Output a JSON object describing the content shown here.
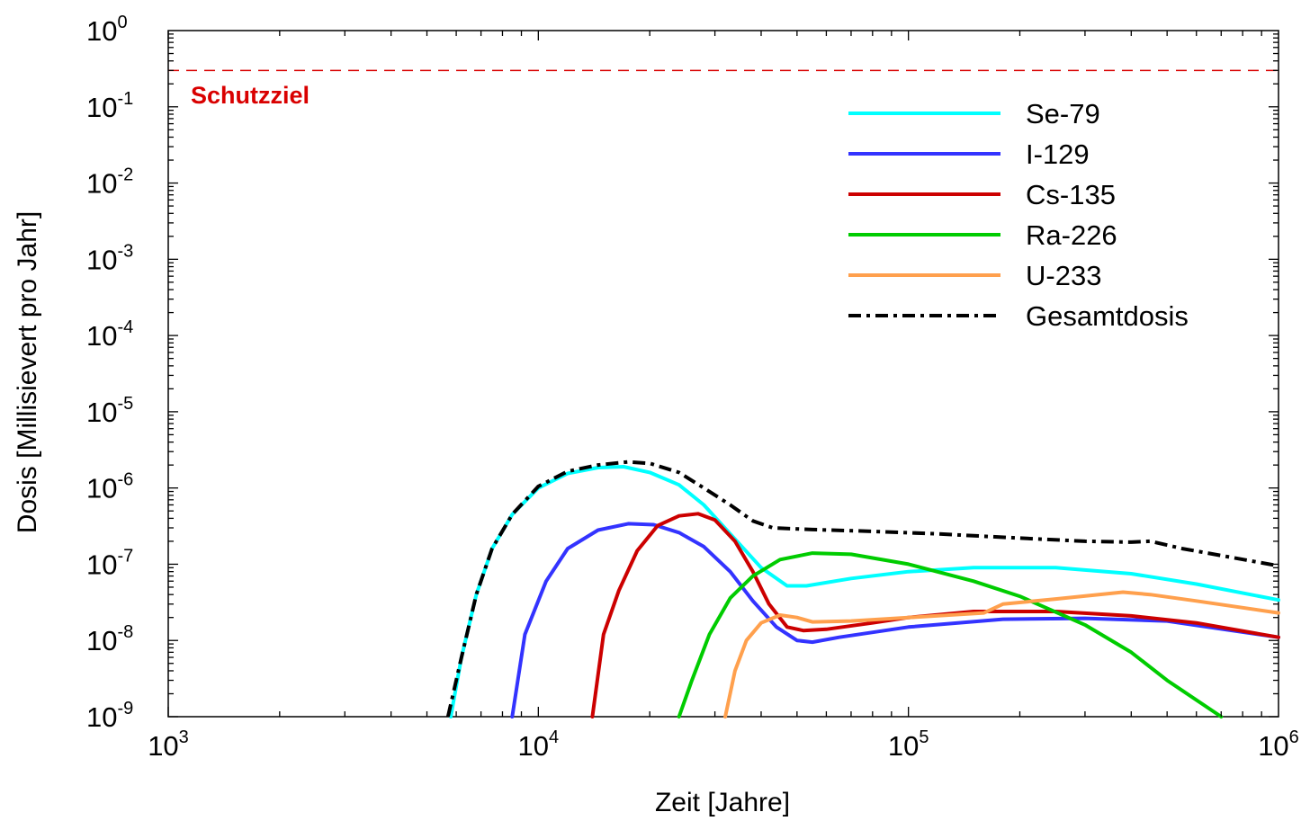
{
  "chart_data": {
    "type": "line",
    "xlabel": "Zeit [Jahre]",
    "ylabel": "Dosis [Millisievert pro Jahr]",
    "x_scale": "log",
    "y_scale": "log",
    "xlim": [
      1000,
      1000000
    ],
    "ylim": [
      1e-09,
      1
    ],
    "x_ticks": [
      1000,
      10000,
      100000,
      1000000
    ],
    "x_tick_labels": [
      {
        "base": "10",
        "exp": "3"
      },
      {
        "base": "10",
        "exp": "4"
      },
      {
        "base": "10",
        "exp": "5"
      },
      {
        "base": "10",
        "exp": "6"
      }
    ],
    "y_ticks": [
      1e-09,
      1e-08,
      1e-07,
      1e-06,
      1e-05,
      0.0001,
      0.001,
      0.01,
      0.1,
      1
    ],
    "y_tick_labels": [
      {
        "base": "10",
        "exp": "-9"
      },
      {
        "base": "10",
        "exp": "-8"
      },
      {
        "base": "10",
        "exp": "-7"
      },
      {
        "base": "10",
        "exp": "-6"
      },
      {
        "base": "10",
        "exp": "-5"
      },
      {
        "base": "10",
        "exp": "-4"
      },
      {
        "base": "10",
        "exp": "-3"
      },
      {
        "base": "10",
        "exp": "-2"
      },
      {
        "base": "10",
        "exp": "-1"
      },
      {
        "base": "10",
        "exp": "0"
      }
    ],
    "grid": false,
    "legend_position": "top-right",
    "reference_line": {
      "label": "Schutzziel",
      "value": 0.3,
      "color": "#d90000",
      "style": "dashed"
    },
    "series": [
      {
        "name": "Se-79",
        "color": "#00ffff",
        "style": "solid",
        "points": [
          [
            5800,
            1e-09
          ],
          [
            6200,
            6e-09
          ],
          [
            6800,
            4e-08
          ],
          [
            7500,
            1.6e-07
          ],
          [
            8500,
            4.5e-07
          ],
          [
            10000,
            1e-06
          ],
          [
            12000,
            1.55e-06
          ],
          [
            14500,
            1.85e-06
          ],
          [
            17000,
            1.9e-06
          ],
          [
            20000,
            1.6e-06
          ],
          [
            24000,
            1.1e-06
          ],
          [
            28000,
            6e-07
          ],
          [
            33000,
            2.5e-07
          ],
          [
            40000,
            9e-08
          ],
          [
            47000,
            5.2e-08
          ],
          [
            53000,
            5.2e-08
          ],
          [
            70000,
            6.5e-08
          ],
          [
            100000,
            8e-08
          ],
          [
            150000,
            9e-08
          ],
          [
            250000,
            9e-08
          ],
          [
            400000,
            7.5e-08
          ],
          [
            600000,
            5.5e-08
          ],
          [
            1000000,
            3.4e-08
          ]
        ]
      },
      {
        "name": "I-129",
        "color": "#3333ff",
        "style": "solid",
        "points": [
          [
            8500,
            1e-09
          ],
          [
            9200,
            1.2e-08
          ],
          [
            10500,
            6e-08
          ],
          [
            12000,
            1.6e-07
          ],
          [
            14500,
            2.8e-07
          ],
          [
            17500,
            3.4e-07
          ],
          [
            20500,
            3.3e-07
          ],
          [
            24000,
            2.6e-07
          ],
          [
            28000,
            1.7e-07
          ],
          [
            33000,
            8e-08
          ],
          [
            38000,
            3.3e-08
          ],
          [
            44000,
            1.5e-08
          ],
          [
            50000,
            1e-08
          ],
          [
            55000,
            9.5e-09
          ],
          [
            65000,
            1.1e-08
          ],
          [
            100000,
            1.5e-08
          ],
          [
            180000,
            1.9e-08
          ],
          [
            300000,
            1.95e-08
          ],
          [
            500000,
            1.8e-08
          ],
          [
            1000000,
            1.1e-08
          ]
        ]
      },
      {
        "name": "Cs-135",
        "color": "#cc0000",
        "style": "solid",
        "points": [
          [
            14000,
            1e-09
          ],
          [
            15000,
            1.2e-08
          ],
          [
            16500,
            4.5e-08
          ],
          [
            18500,
            1.5e-07
          ],
          [
            21000,
            3.2e-07
          ],
          [
            24000,
            4.3e-07
          ],
          [
            27000,
            4.6e-07
          ],
          [
            30000,
            3.8e-07
          ],
          [
            34000,
            2e-07
          ],
          [
            38000,
            8e-08
          ],
          [
            42000,
            3e-08
          ],
          [
            47000,
            1.5e-08
          ],
          [
            52000,
            1.35e-08
          ],
          [
            60000,
            1.4e-08
          ],
          [
            80000,
            1.7e-08
          ],
          [
            100000,
            2e-08
          ],
          [
            150000,
            2.4e-08
          ],
          [
            250000,
            2.4e-08
          ],
          [
            400000,
            2.1e-08
          ],
          [
            600000,
            1.7e-08
          ],
          [
            1000000,
            1.1e-08
          ]
        ]
      },
      {
        "name": "Ra-226",
        "color": "#00cc00",
        "style": "solid",
        "points": [
          [
            24000,
            1e-09
          ],
          [
            26000,
            3e-09
          ],
          [
            29000,
            1.2e-08
          ],
          [
            33000,
            3.6e-08
          ],
          [
            38000,
            7e-08
          ],
          [
            45000,
            1.15e-07
          ],
          [
            55000,
            1.4e-07
          ],
          [
            70000,
            1.35e-07
          ],
          [
            100000,
            1e-07
          ],
          [
            150000,
            6e-08
          ],
          [
            200000,
            3.8e-08
          ],
          [
            300000,
            1.6e-08
          ],
          [
            400000,
            7e-09
          ],
          [
            500000,
            3e-09
          ],
          [
            700000,
            1e-09
          ]
        ]
      },
      {
        "name": "U-233",
        "color": "#ffa04d",
        "style": "solid",
        "points": [
          [
            32000,
            1e-09
          ],
          [
            34000,
            4e-09
          ],
          [
            36500,
            1e-08
          ],
          [
            40000,
            1.7e-08
          ],
          [
            45000,
            2.15e-08
          ],
          [
            50000,
            2e-08
          ],
          [
            55000,
            1.75e-08
          ],
          [
            70000,
            1.8e-08
          ],
          [
            100000,
            2e-08
          ],
          [
            160000,
            2.3e-08
          ],
          [
            180000,
            3e-08
          ],
          [
            250000,
            3.5e-08
          ],
          [
            380000,
            4.3e-08
          ],
          [
            450000,
            4e-08
          ],
          [
            600000,
            3.3e-08
          ],
          [
            1000000,
            2.3e-08
          ]
        ]
      },
      {
        "name": "Gesamtdosis",
        "color": "#000000",
        "style": "dashdot",
        "points": [
          [
            5700,
            1e-09
          ],
          [
            6200,
            6e-09
          ],
          [
            6800,
            4e-08
          ],
          [
            7500,
            1.6e-07
          ],
          [
            8500,
            4.5e-07
          ],
          [
            10000,
            1.05e-06
          ],
          [
            12000,
            1.65e-06
          ],
          [
            14500,
            2e-06
          ],
          [
            17500,
            2.2e-06
          ],
          [
            20000,
            2.1e-06
          ],
          [
            24000,
            1.6e-06
          ],
          [
            28000,
            1e-06
          ],
          [
            33000,
            6e-07
          ],
          [
            38000,
            3.7e-07
          ],
          [
            43000,
            3e-07
          ],
          [
            55000,
            2.85e-07
          ],
          [
            80000,
            2.7e-07
          ],
          [
            120000,
            2.5e-07
          ],
          [
            200000,
            2.2e-07
          ],
          [
            300000,
            2e-07
          ],
          [
            400000,
            1.95e-07
          ],
          [
            450000,
            2e-07
          ],
          [
            550000,
            1.6e-07
          ],
          [
            700000,
            1.3e-07
          ],
          [
            1000000,
            9.5e-08
          ]
        ]
      }
    ]
  }
}
